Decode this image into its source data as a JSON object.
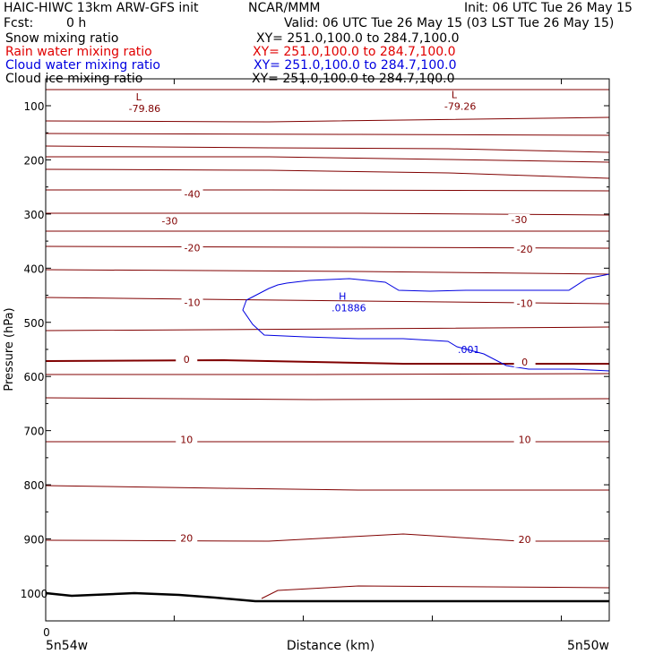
{
  "header": {
    "model": "HAIC-HIWC 13km ARW-GFS init",
    "center": "NCAR/MMM",
    "init": "Init: 06 UTC Tue 26 May 15",
    "fcst_label": "Fcst:",
    "fcst_value": "0 h",
    "valid": "Valid: 06 UTC Tue 26 May 15 (03 LST Tue 26 May 15)"
  },
  "fields": [
    {
      "name": "Snow mixing ratio",
      "xy": "XY= 251.0,100.0 to 284.7,100.0",
      "color": "#000000"
    },
    {
      "name": "Rain water mixing ratio",
      "xy": "XY= 251.0,100.0 to 284.7,100.0",
      "color": "#e00000"
    },
    {
      "name": "Cloud water mixing ratio",
      "xy": "XY= 251.0,100.0 to 284.7,100.0",
      "color": "#0000e0"
    },
    {
      "name": "Cloud ice mixing ratio",
      "xy": "XY= 251.0,100.0 to 284.7,100.0",
      "color": "#000000"
    }
  ],
  "chart_data": {
    "type": "contour",
    "ylabel": "Pressure (hPa)",
    "xlabel": "Distance (km)",
    "ylim": [
      1050,
      50
    ],
    "yticks": [
      "100",
      "200",
      "300",
      "400",
      "500",
      "600",
      "700",
      "800",
      "900",
      "1000"
    ],
    "x_zero_label": "0",
    "x_start_label": "5n54w",
    "x_end_label": "5n50w",
    "temperature_color": "#800000",
    "cloud_color": "#0000e0",
    "temperature_labels": [
      {
        "text": "-40",
        "x": 0.26,
        "p": 263
      },
      {
        "text": "-30",
        "x": 0.22,
        "p": 313
      },
      {
        "text": "-30",
        "x": 0.84,
        "p": 310
      },
      {
        "text": "-20",
        "x": 0.26,
        "p": 362
      },
      {
        "text": "-20",
        "x": 0.85,
        "p": 365
      },
      {
        "text": "-10",
        "x": 0.26,
        "p": 463
      },
      {
        "text": "-10",
        "x": 0.85,
        "p": 465
      },
      {
        "text": "0",
        "x": 0.25,
        "p": 568
      },
      {
        "text": "0",
        "x": 0.85,
        "p": 573
      },
      {
        "text": "10",
        "x": 0.25,
        "p": 716
      },
      {
        "text": "10",
        "x": 0.85,
        "p": 716
      },
      {
        "text": "20",
        "x": 0.25,
        "p": 898
      },
      {
        "text": "20",
        "x": 0.85,
        "p": 901
      }
    ],
    "extrema": [
      {
        "type": "L",
        "value": "-79.86",
        "x": 0.16,
        "p": 90,
        "color": "#800000"
      },
      {
        "type": "L",
        "value": "-79.26",
        "x": 0.72,
        "p": 86,
        "color": "#800000"
      },
      {
        "type": "H",
        "value": ".01886",
        "x": 0.52,
        "p": 458,
        "color": "#0000e0"
      }
    ],
    "cloud_contour_label": ".001"
  }
}
